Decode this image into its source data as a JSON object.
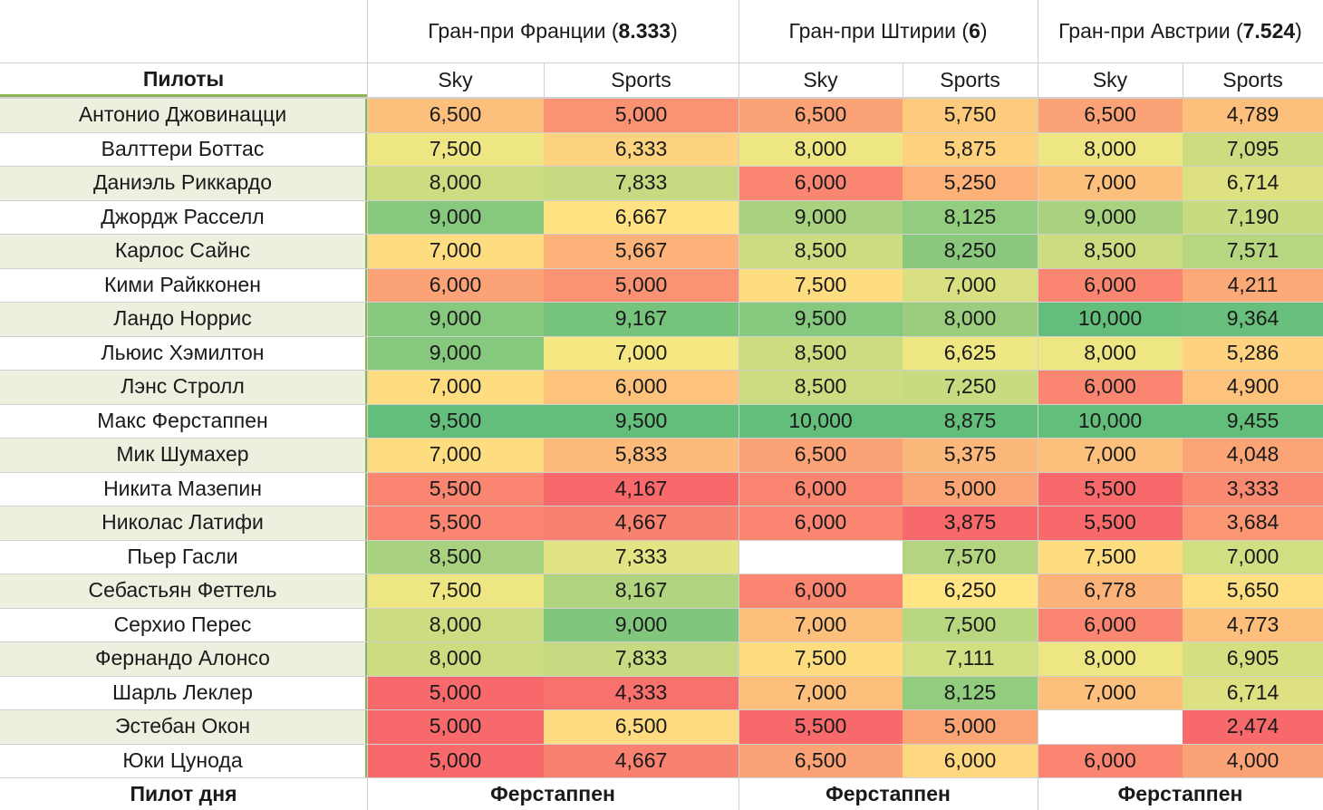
{
  "header": {
    "pilots_label": "Пилоты",
    "pilot_of_day_label": "Пилот дня",
    "races": [
      {
        "title_prefix": "Гран-при Франции (",
        "rating": "8.333",
        "title_suffix": ")",
        "sub": [
          "Sky",
          "Sports"
        ],
        "pilot_of_day": "Ферстаппен"
      },
      {
        "title_prefix": "Гран-при Штирии (",
        "rating": "6",
        "title_suffix": ")",
        "sub": [
          "Sky",
          "Sports"
        ],
        "pilot_of_day": "Ферстаппен"
      },
      {
        "title_prefix": "Гран-при Австрии (",
        "rating": "7.524",
        "title_suffix": ")",
        "sub": [
          "Sky",
          "Sports"
        ],
        "pilot_of_day": "Ферстаппен"
      }
    ]
  },
  "rows": [
    {
      "name": "Антонио Джовинацци",
      "values": [
        "6,500",
        "5,000",
        "6,500",
        "5,750",
        "6,500",
        "4,789"
      ]
    },
    {
      "name": "Валттери Боттас",
      "values": [
        "7,500",
        "6,333",
        "8,000",
        "5,875",
        "8,000",
        "7,095"
      ]
    },
    {
      "name": "Даниэль Риккардо",
      "values": [
        "8,000",
        "7,833",
        "6,000",
        "5,250",
        "7,000",
        "6,714"
      ]
    },
    {
      "name": "Джордж Расселл",
      "values": [
        "9,000",
        "6,667",
        "9,000",
        "8,125",
        "9,000",
        "7,190"
      ]
    },
    {
      "name": "Карлос Сайнс",
      "values": [
        "7,000",
        "5,667",
        "8,500",
        "8,250",
        "8,500",
        "7,571"
      ]
    },
    {
      "name": "Кими Райкконен",
      "values": [
        "6,000",
        "5,000",
        "7,500",
        "7,000",
        "6,000",
        "4,211"
      ]
    },
    {
      "name": "Ландо Норрис",
      "values": [
        "9,000",
        "9,167",
        "9,500",
        "8,000",
        "10,000",
        "9,364"
      ]
    },
    {
      "name": "Льюис Хэмилтон",
      "values": [
        "9,000",
        "7,000",
        "8,500",
        "6,625",
        "8,000",
        "5,286"
      ]
    },
    {
      "name": "Лэнс Стролл",
      "values": [
        "7,000",
        "6,000",
        "8,500",
        "7,250",
        "6,000",
        "4,900"
      ]
    },
    {
      "name": "Макс Ферстаппен",
      "values": [
        "9,500",
        "9,500",
        "10,000",
        "8,875",
        "10,000",
        "9,455"
      ]
    },
    {
      "name": "Мик Шумахер",
      "values": [
        "7,000",
        "5,833",
        "6,500",
        "5,375",
        "7,000",
        "4,048"
      ]
    },
    {
      "name": "Никита Мазепин",
      "values": [
        "5,500",
        "4,167",
        "6,000",
        "5,000",
        "5,500",
        "3,333"
      ]
    },
    {
      "name": "Николас Латифи",
      "values": [
        "5,500",
        "4,667",
        "6,000",
        "3,875",
        "5,500",
        "3,684"
      ]
    },
    {
      "name": "Пьер Гасли",
      "values": [
        "8,500",
        "7,333",
        "",
        "7,570",
        "7,500",
        "7,000"
      ]
    },
    {
      "name": "Себастьян Феттель",
      "values": [
        "7,500",
        "8,167",
        "6,000",
        "6,250",
        "6,778",
        "5,650"
      ]
    },
    {
      "name": "Серхио Перес",
      "values": [
        "8,000",
        "9,000",
        "7,000",
        "7,500",
        "6,000",
        "4,773"
      ]
    },
    {
      "name": "Фернандо Алонсо",
      "values": [
        "8,000",
        "7,833",
        "7,500",
        "7,111",
        "8,000",
        "6,905"
      ]
    },
    {
      "name": "Шарль Леклер",
      "values": [
        "5,000",
        "4,333",
        "7,000",
        "8,125",
        "7,000",
        "6,714"
      ]
    },
    {
      "name": "Эстебан Окон",
      "values": [
        "5,000",
        "6,500",
        "5,500",
        "5,000",
        "",
        "2,474"
      ]
    },
    {
      "name": "Юки Цунода",
      "values": [
        "5,000",
        "4,667",
        "6,500",
        "6,000",
        "6,000",
        "4,000"
      ]
    }
  ],
  "colors": {
    "green": "#63be7b",
    "yellow": "#ffeb84",
    "red": "#f8696b",
    "name_fill": "#ebf1de",
    "name_border": "#8db353"
  }
}
